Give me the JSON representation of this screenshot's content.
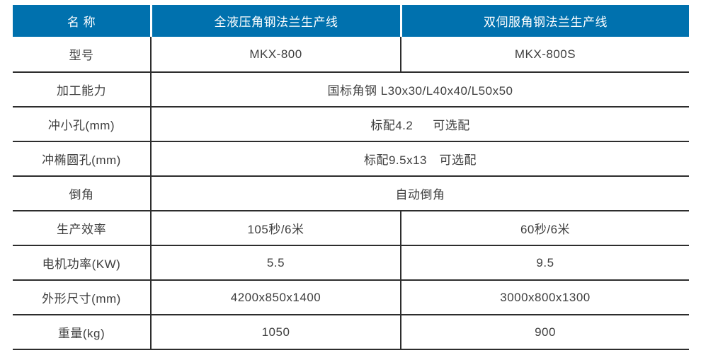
{
  "colors": {
    "header_bg": "#0071ae",
    "header_text": "#ffffff",
    "body_text": "#3e3e3e",
    "grid_line": "#2d2d2d"
  },
  "table": {
    "header": [
      "名 称",
      "全液压角钢法兰生产线",
      "双伺服角钢法兰生产线"
    ],
    "rows": [
      {
        "label": "型号",
        "values": [
          "MKX-800",
          "MKX-800S"
        ]
      },
      {
        "label": "加工能力",
        "span_value": "国标角钢 L30x30/L40x40/L50x50"
      },
      {
        "label": "冲小孔(mm)",
        "span_value": "标配4.2　  可选配"
      },
      {
        "label": "冲椭圆孔(mm)",
        "span_value": "标配9.5x13　可选配"
      },
      {
        "label": "倒角",
        "span_value": "自动倒角"
      },
      {
        "label": "生产效率",
        "values": [
          "105秒/6米",
          "60秒/6米"
        ]
      },
      {
        "label": "电机功率(KW)",
        "values": [
          "5.5",
          "9.5"
        ]
      },
      {
        "label": "外形尺寸(mm)",
        "values": [
          "4200x850x1400",
          "3000x800x1300"
        ]
      },
      {
        "label": "重量(kg)",
        "values": [
          "1050",
          "900"
        ]
      }
    ]
  }
}
